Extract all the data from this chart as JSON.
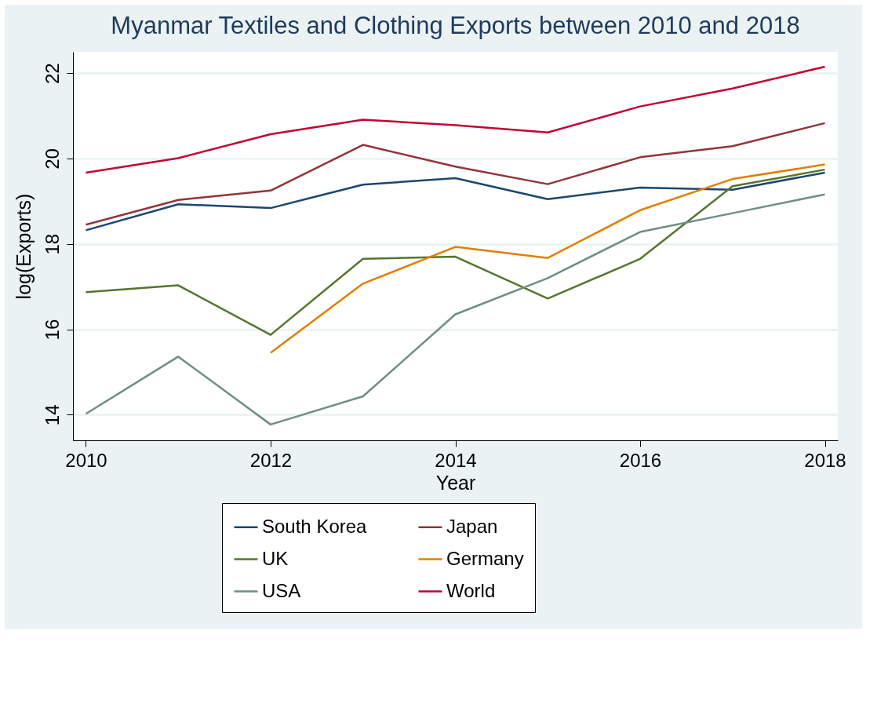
{
  "chart_data": {
    "type": "line",
    "title": "Myanmar Textiles and Clothing Exports between 2010 and 2018",
    "xlabel": "Year",
    "ylabel": "log(Exports)",
    "x": [
      2010,
      2011,
      2012,
      2013,
      2014,
      2015,
      2016,
      2017,
      2018
    ],
    "series": [
      {
        "name": "South Korea",
        "color": "#1a476f",
        "values": [
          18.32,
          18.93,
          18.84,
          19.39,
          19.54,
          19.05,
          19.32,
          19.27,
          19.67
        ]
      },
      {
        "name": "Japan",
        "color": "#90353b",
        "values": [
          18.45,
          19.03,
          19.25,
          20.32,
          19.81,
          19.4,
          20.03,
          20.29,
          20.83
        ]
      },
      {
        "name": "UK",
        "color": "#55752f",
        "values": [
          16.87,
          17.03,
          15.87,
          17.65,
          17.7,
          16.72,
          17.65,
          19.35,
          19.74
        ]
      },
      {
        "name": "Germany",
        "color": "#e37e00",
        "values": [
          null,
          null,
          15.45,
          17.07,
          17.93,
          17.67,
          18.79,
          19.52,
          19.86
        ]
      },
      {
        "name": "USA",
        "color": "#6e8e84",
        "values": [
          14.02,
          15.36,
          13.77,
          14.43,
          16.35,
          17.2,
          18.28,
          18.72,
          19.16
        ]
      },
      {
        "name": "World",
        "color": "#c10534",
        "values": [
          19.67,
          20.01,
          20.57,
          20.91,
          20.78,
          20.61,
          21.22,
          21.64,
          22.15
        ]
      }
    ],
    "xlim": [
      2009.86,
      2018.14
    ],
    "xticks": [
      2010,
      2012,
      2014,
      2016,
      2018
    ],
    "ylim": [
      13.4,
      22.5
    ],
    "yticks": [
      14,
      16,
      18,
      20,
      22
    ],
    "grid": "y",
    "legend": "bottom",
    "marker": "none",
    "line_style": "solid"
  }
}
